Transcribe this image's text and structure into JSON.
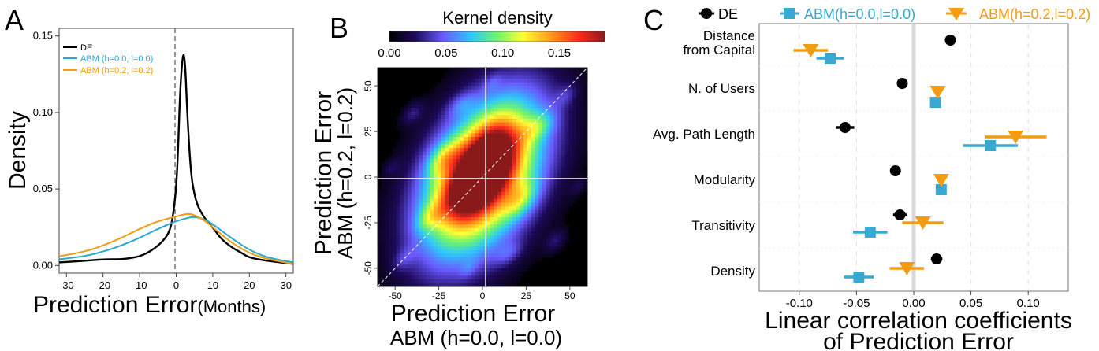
{
  "chart_data": [
    {
      "panel": "A",
      "type": "line",
      "xlabel": "Prediction Error",
      "xlabel_unit": "(Months)",
      "ylabel": "Density",
      "xlim": [
        -32,
        32
      ],
      "ylim": [
        -0.005,
        0.155
      ],
      "xticks": [
        "-30",
        "-20",
        "-10",
        "0",
        "10",
        "20",
        "30"
      ],
      "yticks": [
        "0.00",
        "0.05",
        "0.10",
        "0.15"
      ],
      "legend": [
        "DE",
        "ABM (h=0.0, l=0.0)",
        "ABM (h=0.2, l=0.2)"
      ],
      "series": [
        {
          "name": "DE",
          "color": "#000000",
          "x": [
            -32,
            -25,
            -20,
            -15,
            -12,
            -10,
            -8,
            -6,
            -4,
            -2,
            -1,
            0,
            0.5,
            1,
            1.5,
            2,
            2.5,
            3,
            4,
            5,
            6,
            8,
            10,
            12,
            15,
            18,
            20,
            25,
            32
          ],
          "y": [
            0.002,
            0.003,
            0.004,
            0.004,
            0.005,
            0.006,
            0.008,
            0.011,
            0.015,
            0.021,
            0.03,
            0.05,
            0.075,
            0.11,
            0.13,
            0.14,
            0.13,
            0.1,
            0.06,
            0.046,
            0.038,
            0.03,
            0.025,
            0.018,
            0.012,
            0.008,
            0.005,
            0.003,
            0.001
          ]
        },
        {
          "name": "ABM (h=0.0, l=0.0)",
          "color": "#29a8d1",
          "x": [
            -32,
            -25,
            -20,
            -15,
            -10,
            -5,
            0,
            3,
            5,
            8,
            10,
            15,
            20,
            25,
            32
          ],
          "y": [
            0.004,
            0.006,
            0.009,
            0.013,
            0.018,
            0.024,
            0.029,
            0.031,
            0.032,
            0.03,
            0.027,
            0.018,
            0.01,
            0.005,
            0.002
          ]
        },
        {
          "name": "ABM (h=0.2, l=0.2)",
          "color": "#f39c12",
          "x": [
            -32,
            -25,
            -20,
            -15,
            -10,
            -5,
            0,
            3,
            5,
            8,
            10,
            15,
            20,
            25,
            32
          ],
          "y": [
            0.006,
            0.009,
            0.013,
            0.018,
            0.024,
            0.029,
            0.032,
            0.034,
            0.033,
            0.029,
            0.025,
            0.015,
            0.008,
            0.004,
            0.001
          ]
        }
      ]
    },
    {
      "panel": "B",
      "type": "heatmap",
      "title": "Kernel density",
      "colorbar_ticks": [
        "0.00",
        "0.05",
        "0.10",
        "0.15"
      ],
      "xlabel": "Prediction Error",
      "xlabel_sub": "ABM (h=0.0, l=0.0)",
      "ylabel": "Prediction Error",
      "ylabel_sub": "ABM (h=0.2, l=0.2)",
      "xlim": [
        -60,
        60
      ],
      "ylim": [
        -60,
        60
      ],
      "xticks": [
        "-50",
        "-25",
        "0",
        "25",
        "50"
      ],
      "yticks": [
        "-50",
        "-25",
        "0",
        "25",
        "50"
      ],
      "blobs": [
        {
          "x": 0,
          "y": 0,
          "sx": 22,
          "sy": 28,
          "w": 1.0
        },
        {
          "x": 3,
          "y": 10,
          "sx": 10,
          "sy": 12,
          "w": 0.55
        },
        {
          "x": -6,
          "y": -6,
          "sx": 10,
          "sy": 10,
          "w": 0.45
        },
        {
          "x": -22,
          "y": 10,
          "sx": 6,
          "sy": 6,
          "w": 0.25
        },
        {
          "x": 22,
          "y": -12,
          "sx": 6,
          "sy": 6,
          "w": 0.22
        },
        {
          "x": -30,
          "y": -22,
          "sx": 5,
          "sy": 5,
          "w": 0.18
        },
        {
          "x": 32,
          "y": 28,
          "sx": 6,
          "sy": 5,
          "w": 0.18
        },
        {
          "x": -40,
          "y": 35,
          "sx": 4,
          "sy": 4,
          "w": 0.13
        },
        {
          "x": 42,
          "y": -35,
          "sx": 4,
          "sy": 4,
          "w": 0.12
        },
        {
          "x": -45,
          "y": -45,
          "sx": 4,
          "sy": 4,
          "w": 0.1
        },
        {
          "x": 48,
          "y": 45,
          "sx": 4,
          "sy": 4,
          "w": 0.1
        },
        {
          "x": -12,
          "y": 40,
          "sx": 5,
          "sy": 4,
          "w": 0.12
        },
        {
          "x": 15,
          "y": -42,
          "sx": 5,
          "sy": 4,
          "w": 0.12
        },
        {
          "x": -52,
          "y": 5,
          "sx": 3,
          "sy": 3,
          "w": 0.08
        },
        {
          "x": 55,
          "y": -5,
          "sx": 3,
          "sy": 3,
          "w": 0.08
        },
        {
          "x": -8,
          "y": -50,
          "sx": 3,
          "sy": 3,
          "w": 0.07
        },
        {
          "x": 6,
          "y": 52,
          "sx": 3,
          "sy": 3,
          "w": 0.07
        }
      ]
    },
    {
      "panel": "C",
      "type": "scatter",
      "xlabel": "Linear correlation coefficients",
      "xlabel_sub": "of Prediction Error",
      "xlim": [
        -0.135,
        0.135
      ],
      "xticks": [
        -0.1,
        -0.05,
        0.0,
        0.05,
        0.1
      ],
      "xtick_labels": [
        "-0.10",
        "-0.05",
        "0.00",
        "0.05",
        "0.10"
      ],
      "categories": [
        "Distance from Capital",
        "N. of Users",
        "Avg. Path Length",
        "Modularity",
        "Transitivity",
        "Density"
      ],
      "legend": [
        "DE",
        "ABM(h=0.0,l=0.0)",
        "ABM(h=0.2,l=0.2)"
      ],
      "series": [
        {
          "name": "DE",
          "color": "#000000",
          "marker": "circle",
          "values": [
            0.032,
            -0.01,
            -0.06,
            -0.016,
            -0.012,
            0.02
          ],
          "err": [
            0.004,
            0.004,
            0.008,
            0.004,
            0.006,
            0.005
          ]
        },
        {
          "name": "ABM(h=0.0,l=0.0)",
          "color": "#39a9d2",
          "marker": "square",
          "values": [
            -0.073,
            0.019,
            0.067,
            0.024,
            -0.038,
            -0.048
          ],
          "err": [
            0.012,
            0.003,
            0.024,
            0.003,
            0.015,
            0.013
          ]
        },
        {
          "name": "ABM(h=0.2,l=0.2)",
          "color": "#f39c12",
          "marker": "triangle-down",
          "values": [
            -0.09,
            0.021,
            0.089,
            0.024,
            0.008,
            -0.006
          ],
          "err": [
            0.015,
            0.003,
            0.027,
            0.003,
            0.018,
            0.015
          ]
        }
      ]
    }
  ],
  "panel_letters": {
    "a": "A",
    "b": "B",
    "c": "C"
  }
}
